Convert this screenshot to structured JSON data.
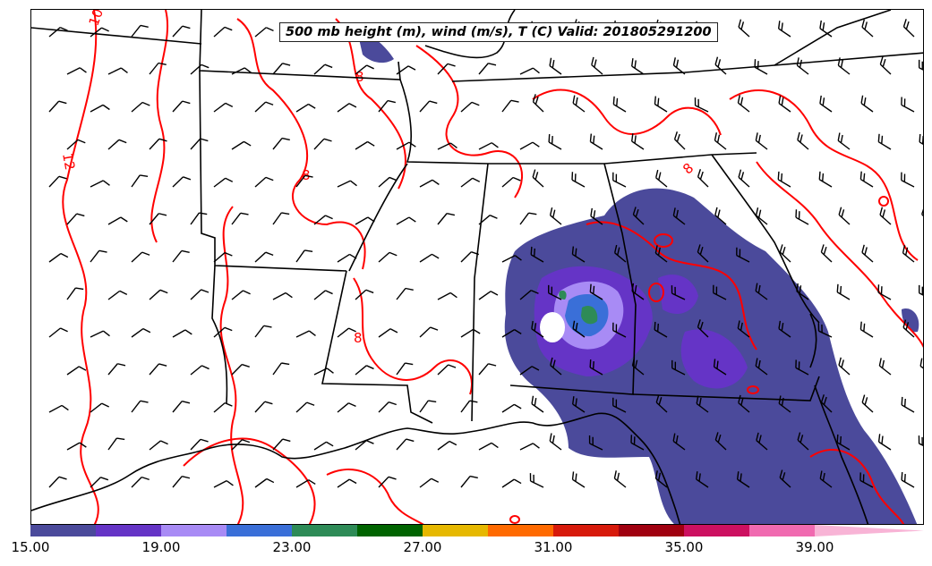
{
  "title": "500 mb height (m), wind (m/s), T (C) Valid: 201805291200",
  "contour_labels": [
    "10",
    "8",
    "12",
    "8",
    "8",
    "8"
  ],
  "colorbar": {
    "colors": [
      "#4b4a9b",
      "#6534c6",
      "#a88bf5",
      "#3a6fd8",
      "#2e8b57",
      "#006400",
      "#e6b800",
      "#ff6a00",
      "#d71a0b",
      "#a00010",
      "#cc1060",
      "#f06ab0",
      "#f8b4d6"
    ],
    "tick_labels": [
      "15.00",
      "19.00",
      "23.00",
      "27.00",
      "31.00",
      "35.00",
      "39.00"
    ]
  },
  "legend_colors": {
    "temperature_contour": "#ff0000",
    "boundaries": "#000000"
  }
}
